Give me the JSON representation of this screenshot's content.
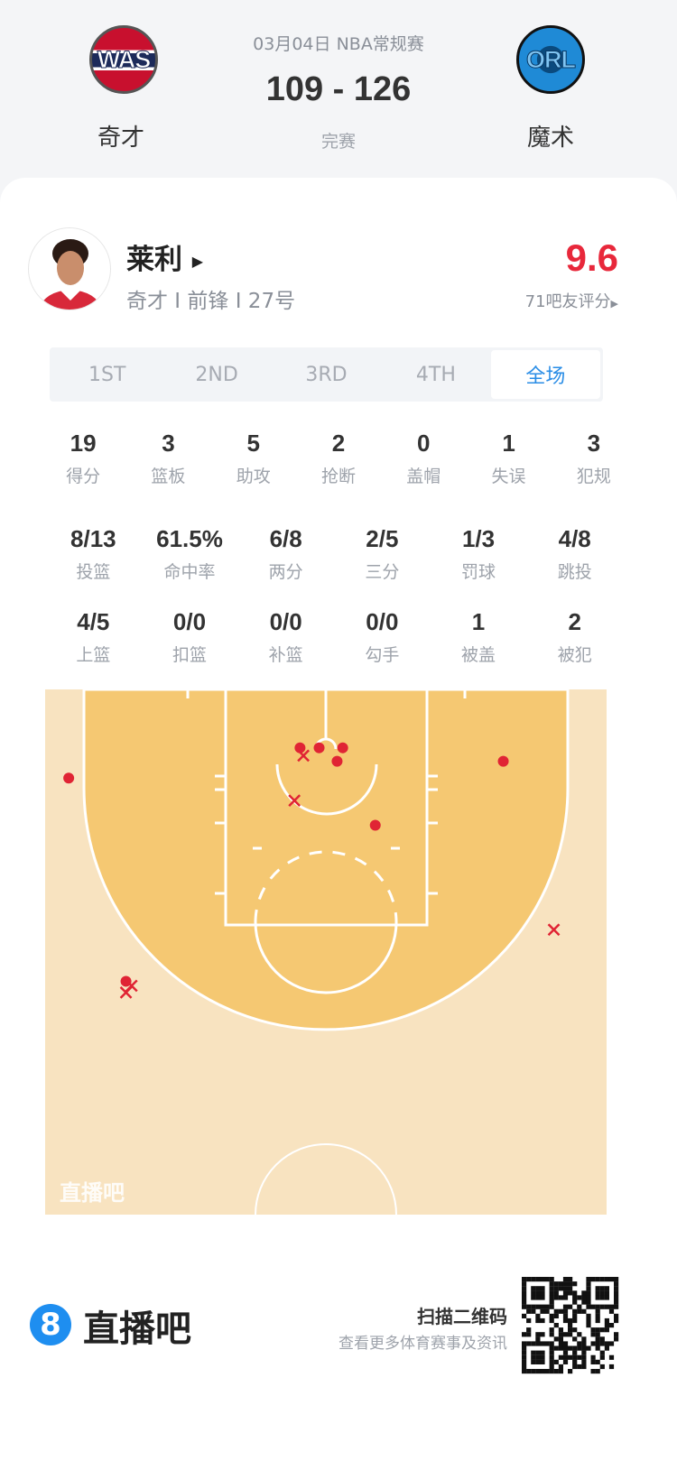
{
  "game": {
    "date_league": "03月04日 NBA常规赛",
    "score": "109 - 126",
    "status": "完赛",
    "home": {
      "abbr": "WAS",
      "name": "奇才"
    },
    "away": {
      "abbr": "ORL",
      "name": "魔术"
    }
  },
  "player": {
    "name": "莱利",
    "info": "奇才 I 前锋 I 27号",
    "rating": "9.6",
    "rating_label": "71吧友评分",
    "rating_color": "#e8283b"
  },
  "tabs": [
    {
      "label": "1ST"
    },
    {
      "label": "2ND"
    },
    {
      "label": "3RD"
    },
    {
      "label": "4TH"
    },
    {
      "label": "全场",
      "active": true
    }
  ],
  "stats_row1": [
    {
      "v": "19",
      "l": "得分"
    },
    {
      "v": "3",
      "l": "篮板"
    },
    {
      "v": "5",
      "l": "助攻"
    },
    {
      "v": "2",
      "l": "抢断"
    },
    {
      "v": "0",
      "l": "盖帽"
    },
    {
      "v": "1",
      "l": "失误"
    },
    {
      "v": "3",
      "l": "犯规"
    }
  ],
  "stats_row2": [
    {
      "v": "8/13",
      "l": "投篮"
    },
    {
      "v": "61.5%",
      "l": "命中率"
    },
    {
      "v": "6/8",
      "l": "两分"
    },
    {
      "v": "2/5",
      "l": "三分"
    },
    {
      "v": "1/3",
      "l": "罚球"
    },
    {
      "v": "4/8",
      "l": "跳投"
    }
  ],
  "stats_row3": [
    {
      "v": "4/5",
      "l": "上篮"
    },
    {
      "v": "0/0",
      "l": "扣篮"
    },
    {
      "v": "0/0",
      "l": "补篮"
    },
    {
      "v": "0/0",
      "l": "勾手"
    },
    {
      "v": "1",
      "l": "被盖"
    },
    {
      "v": "2",
      "l": "被犯"
    }
  ],
  "shot_chart": {
    "watermark": "直播吧",
    "make_color": "#e02434",
    "miss_color": "#e02434",
    "makes": [
      {
        "x": -2.3,
        "y": 5.2
      },
      {
        "x": -0.6,
        "y": 5.2
      },
      {
        "x": 1.5,
        "y": 5.2
      },
      {
        "x": 1.0,
        "y": 6.4
      },
      {
        "x": 4.4,
        "y": 12.1
      },
      {
        "x": 15.8,
        "y": 6.4
      },
      {
        "x": -22.9,
        "y": 7.9
      },
      {
        "x": -17.8,
        "y": 26.0
      }
    ],
    "misses": [
      {
        "x": -2.0,
        "y": 5.9
      },
      {
        "x": -2.8,
        "y": 9.9
      },
      {
        "x": 20.3,
        "y": 21.4
      },
      {
        "x": -17.8,
        "y": 27.0
      },
      {
        "x": -17.3,
        "y": 26.4
      }
    ]
  },
  "footer": {
    "brand": "直播吧",
    "brand_icon": "8",
    "scan": "扫描二维码",
    "scan_sub": "查看更多体育赛事及资讯"
  }
}
